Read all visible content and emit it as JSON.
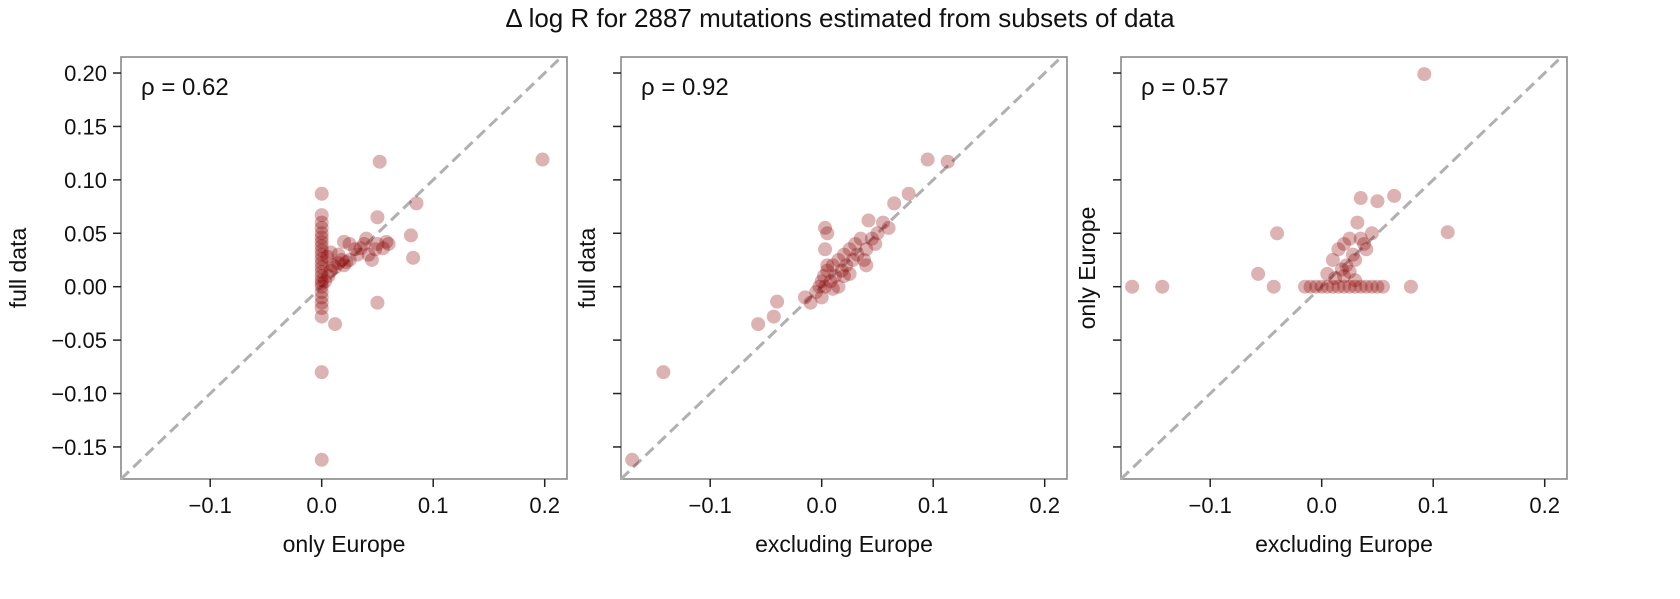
{
  "title": "Δ log R for 2887 mutations estimated from subsets of data",
  "style": {
    "point_color": "#8b0000",
    "point_opacity": 0.3,
    "diagonal_color": "#b0b0b0",
    "frame_color": "#888888"
  },
  "chart_data": [
    {
      "type": "scatter",
      "name": "panel-1",
      "annotation": "ρ = 0.62",
      "xlabel": "only Europe",
      "ylabel": "full data",
      "xlim": [
        -0.18,
        0.22
      ],
      "ylim": [
        -0.18,
        0.215
      ],
      "xticks": [
        -0.1,
        0.0,
        0.1,
        0.2
      ],
      "xtick_labels": [
        "−0.1",
        "0.0",
        "0.1",
        "0.2"
      ],
      "yticks": [
        -0.15,
        -0.1,
        -0.05,
        0.0,
        0.05,
        0.1,
        0.15,
        0.2
      ],
      "ytick_labels": [
        "−0.15",
        "−0.10",
        "−0.05",
        "0.00",
        "0.05",
        "0.10",
        "0.15",
        "0.20"
      ],
      "show_ytick_labels": true,
      "diagonal": true,
      "points": [
        [
          0.0,
          -0.162
        ],
        [
          0.0,
          -0.08
        ],
        [
          0.0,
          -0.028
        ],
        [
          0.0,
          -0.02
        ],
        [
          0.0,
          -0.015
        ],
        [
          0.0,
          -0.01
        ],
        [
          0.0,
          -0.005
        ],
        [
          0.0,
          0.0
        ],
        [
          0.0,
          0.003
        ],
        [
          0.0,
          0.006
        ],
        [
          0.0,
          0.01
        ],
        [
          0.0,
          0.014
        ],
        [
          0.0,
          0.018
        ],
        [
          0.0,
          0.022
        ],
        [
          0.0,
          0.026
        ],
        [
          0.0,
          0.03
        ],
        [
          0.0,
          0.034
        ],
        [
          0.0,
          0.038
        ],
        [
          0.0,
          0.042
        ],
        [
          0.0,
          0.046
        ],
        [
          0.0,
          0.05
        ],
        [
          0.0,
          0.055
        ],
        [
          0.0,
          0.06
        ],
        [
          0.0,
          0.067
        ],
        [
          0.0,
          0.087
        ],
        [
          0.003,
          0.005
        ],
        [
          0.006,
          0.01
        ],
        [
          0.008,
          0.015
        ],
        [
          0.01,
          0.02
        ],
        [
          0.012,
          0.018
        ],
        [
          0.015,
          0.022
        ],
        [
          0.018,
          0.025
        ],
        [
          0.02,
          0.02
        ],
        [
          0.022,
          0.023
        ],
        [
          0.025,
          0.025
        ],
        [
          0.005,
          0.028
        ],
        [
          0.008,
          0.032
        ],
        [
          0.012,
          -0.035
        ],
        [
          0.015,
          0.03
        ],
        [
          0.02,
          0.042
        ],
        [
          0.025,
          0.04
        ],
        [
          0.03,
          0.035
        ],
        [
          0.032,
          0.03
        ],
        [
          0.035,
          0.036
        ],
        [
          0.038,
          0.04
        ],
        [
          0.04,
          0.045
        ],
        [
          0.042,
          0.03
        ],
        [
          0.045,
          0.025
        ],
        [
          0.048,
          0.035
        ],
        [
          0.05,
          0.065
        ],
        [
          0.05,
          0.04
        ],
        [
          0.052,
          0.117
        ],
        [
          0.055,
          0.036
        ],
        [
          0.058,
          0.042
        ],
        [
          0.06,
          0.04
        ],
        [
          0.05,
          -0.015
        ],
        [
          0.08,
          0.048
        ],
        [
          0.082,
          0.027
        ],
        [
          0.085,
          0.078
        ],
        [
          0.198,
          0.119
        ]
      ]
    },
    {
      "type": "scatter",
      "name": "panel-2",
      "annotation": "ρ = 0.92",
      "xlabel": "excluding Europe",
      "ylabel": "full data",
      "xlim": [
        -0.18,
        0.22
      ],
      "ylim": [
        -0.18,
        0.215
      ],
      "xticks": [
        -0.1,
        0.0,
        0.1,
        0.2
      ],
      "xtick_labels": [
        "−0.1",
        "0.0",
        "0.1",
        "0.2"
      ],
      "yticks": [
        -0.15,
        -0.1,
        -0.05,
        0.0,
        0.05,
        0.1,
        0.15,
        0.2
      ],
      "show_ytick_labels": false,
      "diagonal": true,
      "points": [
        [
          -0.17,
          -0.162
        ],
        [
          -0.142,
          -0.08
        ],
        [
          -0.057,
          -0.035
        ],
        [
          -0.043,
          -0.028
        ],
        [
          -0.04,
          -0.014
        ],
        [
          -0.015,
          -0.01
        ],
        [
          -0.01,
          -0.015
        ],
        [
          -0.005,
          -0.005
        ],
        [
          -0.002,
          0.0
        ],
        [
          0.0,
          0.005
        ],
        [
          0.0,
          -0.01
        ],
        [
          0.002,
          0.01
        ],
        [
          0.003,
          0.0
        ],
        [
          0.005,
          0.015
        ],
        [
          0.005,
          0.02
        ],
        [
          0.005,
          0.05
        ],
        [
          0.003,
          0.055
        ],
        [
          0.003,
          0.035
        ],
        [
          0.008,
          0.005
        ],
        [
          0.01,
          0.02
        ],
        [
          0.012,
          0.01
        ],
        [
          0.015,
          0.025
        ],
        [
          0.018,
          0.015
        ],
        [
          0.02,
          0.03
        ],
        [
          0.022,
          0.02
        ],
        [
          0.025,
          0.035
        ],
        [
          0.028,
          0.025
        ],
        [
          0.03,
          0.04
        ],
        [
          0.032,
          0.03
        ],
        [
          0.035,
          0.045
        ],
        [
          0.038,
          0.025
        ],
        [
          0.04,
          0.035
        ],
        [
          0.04,
          0.02
        ],
        [
          0.042,
          0.062
        ],
        [
          0.045,
          0.045
        ],
        [
          0.048,
          0.04
        ],
        [
          0.05,
          0.05
        ],
        [
          0.055,
          0.06
        ],
        [
          0.06,
          0.055
        ],
        [
          0.065,
          0.078
        ],
        [
          0.078,
          0.087
        ],
        [
          0.095,
          0.119
        ],
        [
          0.113,
          0.117
        ],
        [
          0.015,
          0.0
        ],
        [
          0.02,
          0.01
        ],
        [
          0.025,
          0.012
        ],
        [
          0.01,
          -0.002
        ]
      ]
    },
    {
      "type": "scatter",
      "name": "panel-3",
      "annotation": "ρ = 0.57",
      "xlabel": "excluding Europe",
      "ylabel": "only Europe",
      "xlim": [
        -0.18,
        0.22
      ],
      "ylim": [
        -0.18,
        0.215
      ],
      "xticks": [
        -0.1,
        0.0,
        0.1,
        0.2
      ],
      "xtick_labels": [
        "−0.1",
        "0.0",
        "0.1",
        "0.2"
      ],
      "yticks": [
        -0.15,
        -0.1,
        -0.05,
        0.0,
        0.05,
        0.1,
        0.15,
        0.2
      ],
      "show_ytick_labels": false,
      "diagonal": true,
      "points": [
        [
          -0.17,
          0.0
        ],
        [
          -0.143,
          0.0
        ],
        [
          -0.057,
          0.012
        ],
        [
          -0.043,
          0.0
        ],
        [
          -0.04,
          0.05
        ],
        [
          -0.015,
          0.0
        ],
        [
          -0.01,
          0.0
        ],
        [
          -0.005,
          0.0
        ],
        [
          0.0,
          0.0
        ],
        [
          0.005,
          0.0
        ],
        [
          0.01,
          0.0
        ],
        [
          0.015,
          0.0
        ],
        [
          0.02,
          0.0
        ],
        [
          0.025,
          0.0
        ],
        [
          0.03,
          0.0
        ],
        [
          0.035,
          0.0
        ],
        [
          0.04,
          0.0
        ],
        [
          0.045,
          0.0
        ],
        [
          0.05,
          0.0
        ],
        [
          0.055,
          0.0
        ],
        [
          0.08,
          0.0
        ],
        [
          0.005,
          0.012
        ],
        [
          0.01,
          0.025
        ],
        [
          0.012,
          0.008
        ],
        [
          0.015,
          0.035
        ],
        [
          0.018,
          0.016
        ],
        [
          0.02,
          0.04
        ],
        [
          0.022,
          0.02
        ],
        [
          0.025,
          0.045
        ],
        [
          0.028,
          0.03
        ],
        [
          0.03,
          0.025
        ],
        [
          0.032,
          0.06
        ],
        [
          0.035,
          0.045
        ],
        [
          0.038,
          0.04
        ],
        [
          0.04,
          0.035
        ],
        [
          0.045,
          0.05
        ],
        [
          0.02,
          0.01
        ],
        [
          0.025,
          0.014
        ],
        [
          0.035,
          0.083
        ],
        [
          0.05,
          0.08
        ],
        [
          0.065,
          0.085
        ],
        [
          0.092,
          0.199
        ],
        [
          0.113,
          0.051
        ],
        [
          0.03,
          0.006
        ]
      ]
    }
  ]
}
